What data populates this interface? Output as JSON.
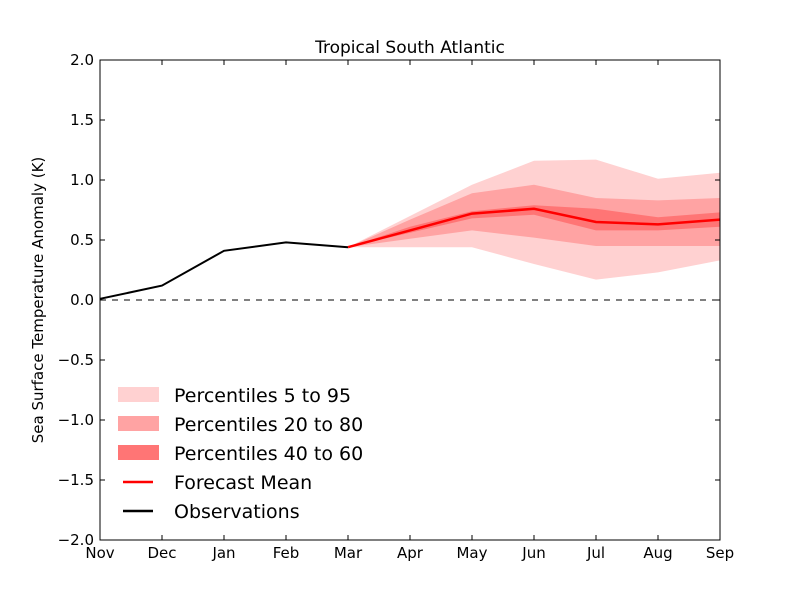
{
  "chart_data": {
    "type": "line",
    "title": "Tropical South Atlantic",
    "xlabel": "",
    "ylabel": "Sea Surface Temperature Anomaly (K)",
    "x_categories": [
      "Nov",
      "Dec",
      "Jan",
      "Feb",
      "Mar",
      "Apr",
      "May",
      "Jun",
      "Jul",
      "Aug",
      "Sep"
    ],
    "ylim": [
      -2.0,
      2.0
    ],
    "yticks": [
      -2.0,
      -1.5,
      -1.0,
      -0.5,
      0.0,
      0.5,
      1.0,
      1.5,
      2.0
    ],
    "ytick_labels": [
      "−2.0",
      "−1.5",
      "−1.0",
      "−0.5",
      "0.0",
      "0.5",
      "1.0",
      "1.5",
      "2.0"
    ],
    "zero_line": true,
    "grid": false,
    "legend_position": "lower-left",
    "observations": {
      "name": "Observations",
      "color": "#000000",
      "x": [
        "Nov",
        "Dec",
        "Jan",
        "Feb",
        "Mar"
      ],
      "values": [
        0.01,
        0.12,
        0.41,
        0.48,
        0.44
      ]
    },
    "forecast_x": [
      "Mar",
      "Apr",
      "May",
      "Jun",
      "Jul",
      "Aug",
      "Sep"
    ],
    "forecast_mean": {
      "name": "Forecast Mean",
      "color": "#ff0000",
      "values": [
        0.44,
        0.58,
        0.72,
        0.76,
        0.65,
        0.63,
        0.67
      ]
    },
    "bands": [
      {
        "name": "Percentiles 5 to 95",
        "color": "#ffd1d1",
        "upper": [
          0.44,
          0.7,
          0.96,
          1.16,
          1.17,
          1.01,
          1.06
        ],
        "lower": [
          0.44,
          0.44,
          0.44,
          0.3,
          0.17,
          0.23,
          0.33
        ]
      },
      {
        "name": "Percentiles 20 to 80",
        "color": "#ffa3a3",
        "upper": [
          0.44,
          0.67,
          0.89,
          0.96,
          0.85,
          0.83,
          0.85
        ],
        "lower": [
          0.44,
          0.51,
          0.58,
          0.52,
          0.45,
          0.45,
          0.45
        ]
      },
      {
        "name": "Percentiles 40 to 60",
        "color": "#ff7575",
        "upper": [
          0.44,
          0.61,
          0.74,
          0.79,
          0.76,
          0.69,
          0.73
        ],
        "lower": [
          0.44,
          0.56,
          0.68,
          0.71,
          0.58,
          0.58,
          0.61
        ]
      }
    ],
    "legend": [
      {
        "label": "Percentiles 5 to 95",
        "kind": "patch",
        "color": "#ffd1d1"
      },
      {
        "label": "Percentiles 20 to 80",
        "kind": "patch",
        "color": "#ffa3a3"
      },
      {
        "label": "Percentiles 40 to 60",
        "kind": "patch",
        "color": "#ff7575"
      },
      {
        "label": "Forecast Mean",
        "kind": "line",
        "color": "#ff0000"
      },
      {
        "label": "Observations",
        "kind": "line",
        "color": "#000000"
      }
    ]
  }
}
